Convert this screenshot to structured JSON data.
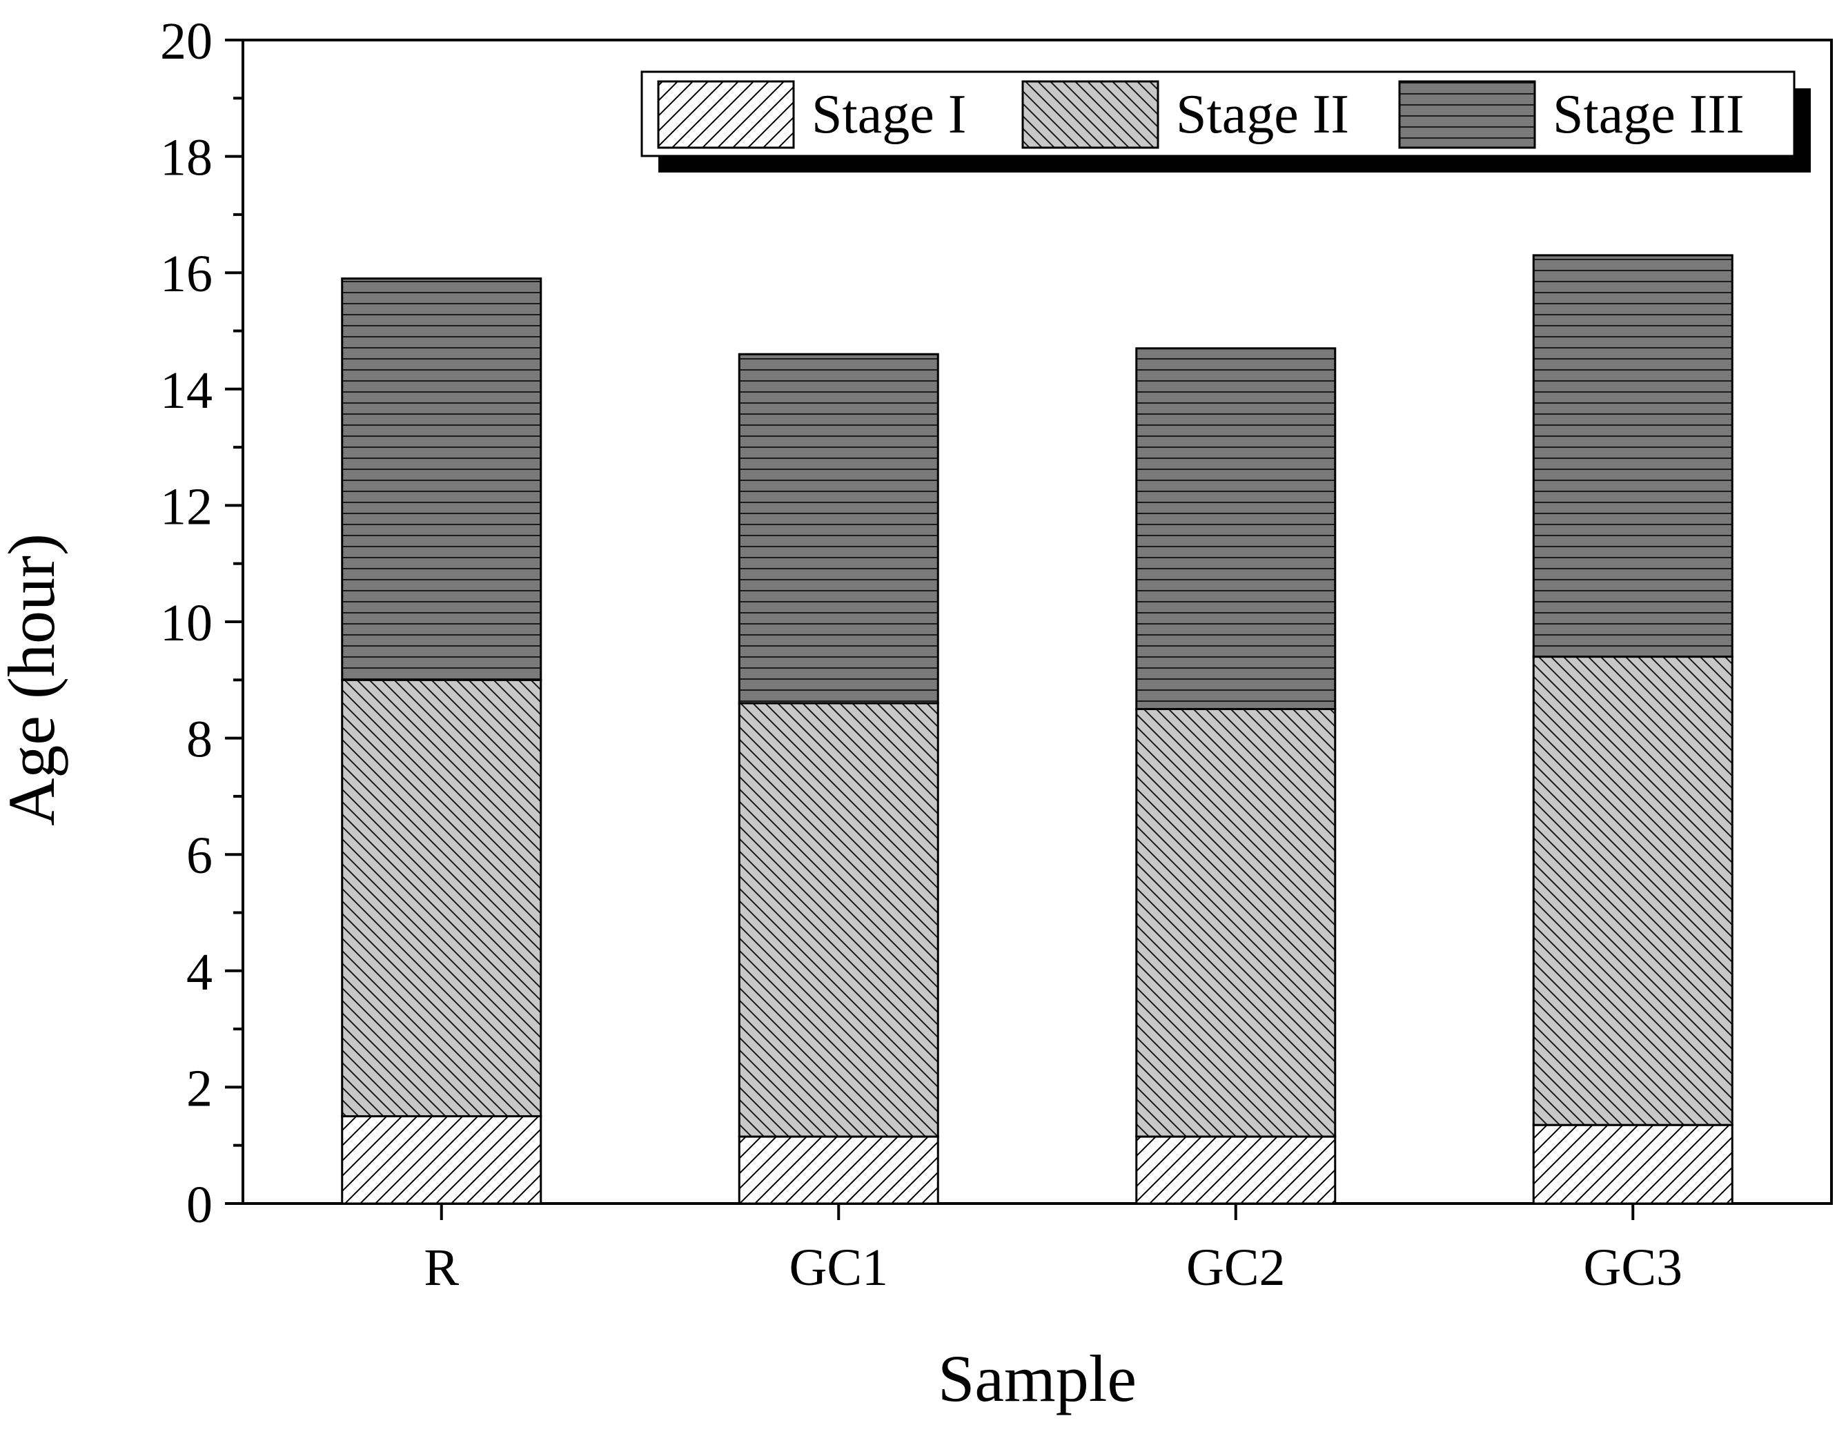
{
  "chart_data": {
    "type": "bar",
    "stacked": true,
    "title": "",
    "xlabel": "Sample",
    "ylabel": "Age (hour)",
    "ylim": [
      0,
      20
    ],
    "yticks": [
      "0",
      "2",
      "4",
      "6",
      "8",
      "10",
      "12",
      "14",
      "16",
      "18",
      "20"
    ],
    "categories": [
      "R",
      "GC1",
      "GC2",
      "GC3"
    ],
    "series": [
      {
        "name": "Stage I",
        "values": [
          1.5,
          1.15,
          1.15,
          1.35
        ],
        "pattern": "diagonal-forward",
        "color": "#ffffff"
      },
      {
        "name": "Stage II",
        "values": [
          7.5,
          7.45,
          7.35,
          8.05
        ],
        "pattern": "diagonal-back",
        "color": "#c8c8c8"
      },
      {
        "name": "Stage III",
        "values": [
          6.9,
          6.0,
          6.2,
          6.9
        ],
        "pattern": "horizontal",
        "color": "#7a7a7a"
      }
    ],
    "grid": false,
    "legend_position": "top-right"
  }
}
